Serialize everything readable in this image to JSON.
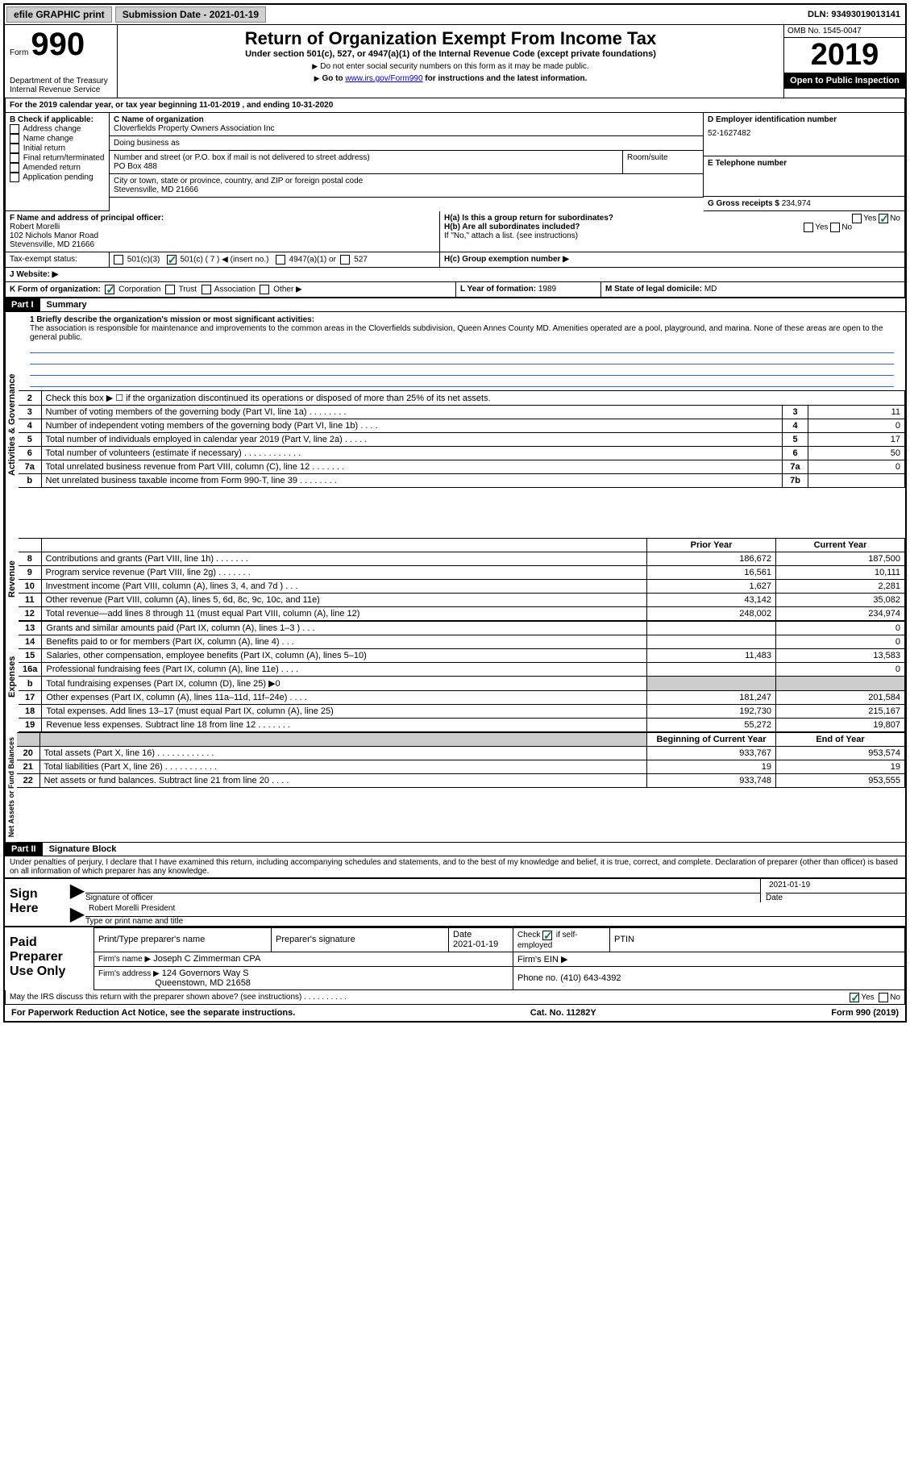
{
  "topbar": {
    "efile": "efile GRAPHIC print",
    "sub_label": "Submission Date - 2021-01-19",
    "dln": "DLN: 93493019013141"
  },
  "header": {
    "form_label": "Form",
    "form_no": "990",
    "dept": "Department of the Treasury\nInternal Revenue Service",
    "title": "Return of Organization Exempt From Income Tax",
    "subtitle": "Under section 501(c), 527, or 4947(a)(1) of the Internal Revenue Code (except private foundations)",
    "note1": "Do not enter social security numbers on this form as it may be made public.",
    "note2_pre": "Go to ",
    "note2_link": "www.irs.gov/Form990",
    "note2_post": " for instructions and the latest information.",
    "omb": "OMB No. 1545-0047",
    "year": "2019",
    "open": "Open to Public Inspection"
  },
  "periodA": "For the 2019 calendar year, or tax year beginning 11-01-2019    , and ending 10-31-2020",
  "boxB": {
    "label": "B Check if applicable:",
    "items": [
      "Address change",
      "Name change",
      "Initial return",
      "Final return/terminated",
      "Amended return",
      "Application pending"
    ]
  },
  "boxC": {
    "label": "C Name of organization",
    "name": "Cloverfields Property Owners Association Inc",
    "dba_label": "Doing business as",
    "addr_label": "Number and street (or P.O. box if mail is not delivered to street address)",
    "room_label": "Room/suite",
    "addr": "PO Box 488",
    "city_label": "City or town, state or province, country, and ZIP or foreign postal code",
    "city": "Stevensville, MD  21666"
  },
  "boxD": {
    "label": "D Employer identification number",
    "val": "52-1627482"
  },
  "boxE": {
    "label": "E Telephone number",
    "val": ""
  },
  "boxG": {
    "label": "G Gross receipts $",
    "val": "234,974"
  },
  "boxF": {
    "label": "F  Name and address of principal officer:",
    "name": "Robert Morelli",
    "addr1": "102 Nichols Manor Road",
    "addr2": "Stevensville, MD  21666"
  },
  "boxH": {
    "a": "H(a)  Is this a group return for subordinates?",
    "b": "H(b)  Are all subordinates included?",
    "b_note": "If \"No,\" attach a list. (see instructions)",
    "c": "H(c)  Group exemption number ▶"
  },
  "taxExempt": {
    "label": "Tax-exempt status:",
    "c3": "501(c)(3)",
    "c": "501(c) ( 7 ) ◀ (insert no.)",
    "a1": "4947(a)(1) or",
    "527": "527"
  },
  "websiteJ": "J   Website: ▶",
  "boxK": {
    "label": "K Form of organization:",
    "opts": [
      "Corporation",
      "Trust",
      "Association",
      "Other ▶"
    ]
  },
  "boxL": {
    "label": "L Year of formation:",
    "val": "1989"
  },
  "boxM": {
    "label": "M State of legal domicile:",
    "val": "MD"
  },
  "part1": {
    "tag": "Part I",
    "title": "Summary",
    "line1_label": "1  Briefly describe the organization's mission or most significant activities:",
    "mission": "The association is responsible for maintenance and improvements to the common areas in the Cloverfields subdivision, Queen Annes County MD. Amenities operated are a pool, playground, and marina. None of these areas are open to the general public.",
    "vlabel_gov": "Activities & Governance",
    "vlabel_rev": "Revenue",
    "vlabel_exp": "Expenses",
    "vlabel_net": "Net Assets or Fund Balances",
    "gov_rows": [
      {
        "n": "2",
        "t": "Check this box ▶ ☐  if the organization discontinued its operations or disposed of more than 25% of its net assets."
      },
      {
        "n": "3",
        "t": "Number of voting members of the governing body (Part VI, line 1a)  .   .   .   .   .   .   .   .",
        "box": "3",
        "v": "11"
      },
      {
        "n": "4",
        "t": "Number of independent voting members of the governing body (Part VI, line 1b)  .   .   .   .",
        "box": "4",
        "v": "0"
      },
      {
        "n": "5",
        "t": "Total number of individuals employed in calendar year 2019 (Part V, line 2a)  .   .   .   .   .",
        "box": "5",
        "v": "17"
      },
      {
        "n": "6",
        "t": "Total number of volunteers (estimate if necessary)    .    .    .    .    .    .    .    .    .    .    .    .",
        "box": "6",
        "v": "50"
      },
      {
        "n": "7a",
        "t": "Total unrelated business revenue from Part VIII, column (C), line 12   .   .   .   .   .   .   .",
        "box": "7a",
        "v": "0"
      },
      {
        "n": "b",
        "t": "Net unrelated business taxable income from Form 990-T, line 39    .   .   .   .   .   .   .   .",
        "box": "7b",
        "v": ""
      }
    ],
    "col_prior": "Prior Year",
    "col_current": "Current Year",
    "rev_rows": [
      {
        "n": "8",
        "t": "Contributions and grants (Part VIII, line 1h)    .     .     .     .     .     .     .",
        "p": "186,672",
        "c": "187,500"
      },
      {
        "n": "9",
        "t": "Program service revenue (Part VIII, line 2g)   .     .     .     .     .     .     .",
        "p": "16,561",
        "c": "10,111"
      },
      {
        "n": "10",
        "t": "Investment income (Part VIII, column (A), lines 3, 4, and 7d )    .     .     .",
        "p": "1,627",
        "c": "2,281"
      },
      {
        "n": "11",
        "t": "Other revenue (Part VIII, column (A), lines 5, 6d, 8c, 9c, 10c, and 11e)",
        "p": "43,142",
        "c": "35,082"
      },
      {
        "n": "12",
        "t": "Total revenue—add lines 8 through 11 (must equal Part VIII, column (A), line 12)",
        "p": "248,002",
        "c": "234,974"
      }
    ],
    "exp_rows": [
      {
        "n": "13",
        "t": "Grants and similar amounts paid (Part IX, column (A), lines 1–3 )   .    .    .",
        "p": "",
        "c": "0"
      },
      {
        "n": "14",
        "t": "Benefits paid to or for members (Part IX, column (A), line 4)   .    .    .",
        "p": "",
        "c": "0"
      },
      {
        "n": "15",
        "t": "Salaries, other compensation, employee benefits (Part IX, column (A), lines 5–10)",
        "p": "11,483",
        "c": "13,583"
      },
      {
        "n": "16a",
        "t": "Professional fundraising fees (Part IX, column (A), line 11e)   .    .    .    .",
        "p": "",
        "c": "0"
      },
      {
        "n": "b",
        "t": "Total fundraising expenses (Part IX, column (D), line 25) ▶0",
        "p": "SHADE",
        "c": "SHADE"
      },
      {
        "n": "17",
        "t": "Other expenses (Part IX, column (A), lines 11a–11d, 11f–24e)   .    .    .    .",
        "p": "181,247",
        "c": "201,584"
      },
      {
        "n": "18",
        "t": "Total expenses. Add lines 13–17 (must equal Part IX, column (A), line 25)",
        "p": "192,730",
        "c": "215,167"
      },
      {
        "n": "19",
        "t": "Revenue less expenses. Subtract line 18 from line 12 .   .   .   .   .   .   .",
        "p": "55,272",
        "c": "19,807"
      }
    ],
    "col_begin": "Beginning of Current Year",
    "col_end": "End of Year",
    "net_rows": [
      {
        "n": "20",
        "t": "Total assets (Part X, line 16)  .    .    .    .    .    .    .    .    .    .    .    .",
        "p": "933,767",
        "c": "953,574"
      },
      {
        "n": "21",
        "t": "Total liabilities (Part X, line 26)   .    .    .    .    .    .    .    .    .    .    .",
        "p": "19",
        "c": "19"
      },
      {
        "n": "22",
        "t": "Net assets or fund balances. Subtract line 21 from line 20   .    .    .    .",
        "p": "933,748",
        "c": "953,555"
      }
    ]
  },
  "part2": {
    "tag": "Part II",
    "title": "Signature Block",
    "decl": "Under penalties of perjury, I declare that I have examined this return, including accompanying schedules and statements, and to the best of my knowledge and belief, it is true, correct, and complete. Declaration of preparer (other than officer) is based on all information of which preparer has any knowledge."
  },
  "sign": {
    "label": "Sign Here",
    "sig_officer": "Signature of officer",
    "date": "2021-01-19",
    "date_label": "Date",
    "name": "Robert Morelli  President",
    "name_label": "Type or print name and title"
  },
  "preparer": {
    "label": "Paid Preparer Use Only",
    "print_name": "Print/Type preparer's name",
    "sig": "Preparer's signature",
    "date_label": "Date",
    "date": "2021-01-19",
    "check_label": "Check ☑ if self-employed",
    "ptin": "PTIN",
    "firm_name_label": "Firm's name    ▶",
    "firm_name": "Joseph C Zimmerman CPA",
    "firm_ein": "Firm's EIN ▶",
    "firm_addr_label": "Firm's address ▶",
    "firm_addr1": "124 Governors Way S",
    "firm_addr2": "Queenstown, MD  21658",
    "phone_label": "Phone no.",
    "phone": "(410) 643-4392"
  },
  "discuss": "May the IRS discuss this return with the preparer shown above? (see instructions)    .    .    .    .    .    .    .    .    .    .",
  "footer": {
    "left": "For Paperwork Reduction Act Notice, see the separate instructions.",
    "mid": "Cat. No. 11282Y",
    "right": "Form 990 (2019)"
  }
}
